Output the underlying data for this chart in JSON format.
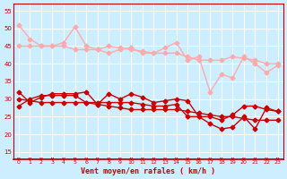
{
  "bg_color": "#cceeff",
  "grid_color": "#ffffff",
  "xlabel": "Vent moyen/en rafales ( km/h )",
  "xlabel_color": "#cc0000",
  "tick_color": "#cc0000",
  "x_ticks": [
    0,
    1,
    2,
    3,
    4,
    5,
    6,
    7,
    8,
    9,
    10,
    11,
    12,
    13,
    14,
    15,
    16,
    17,
    18,
    19,
    20,
    21,
    22,
    23
  ],
  "ylim": [
    13,
    57
  ],
  "yticks": [
    15,
    20,
    25,
    30,
    35,
    40,
    45,
    50,
    55
  ],
  "series_light": [
    [
      51,
      47,
      45,
      45,
      46,
      50.5,
      45,
      44,
      45,
      44.5,
      44,
      43.5,
      43,
      44.5,
      46,
      41,
      42,
      32,
      37,
      36,
      42,
      40,
      37.5,
      39.5
    ],
    [
      45,
      45,
      45,
      45,
      45,
      44,
      44,
      44,
      43,
      44,
      44.5,
      43,
      43,
      43,
      43,
      42,
      41,
      41,
      41,
      42,
      41.5,
      41,
      40,
      40
    ]
  ],
  "series_dark": [
    [
      32,
      29,
      30.5,
      31.5,
      31.5,
      31.5,
      32,
      28.5,
      31.5,
      30,
      31.5,
      30.5,
      29,
      29.5,
      30,
      29.5,
      25,
      23,
      21.5,
      22,
      25,
      21.5,
      27.5,
      26.5
    ],
    [
      28,
      30,
      31,
      31,
      31,
      31,
      29,
      29,
      29,
      29,
      29,
      28.5,
      28,
      28,
      28.5,
      25,
      25,
      25,
      24,
      25.5,
      28,
      28,
      27,
      26.5
    ],
    [
      30,
      29.5,
      29,
      29,
      29,
      29,
      29,
      28.5,
      28,
      27.5,
      27,
      27,
      27,
      27,
      27,
      26.5,
      26,
      25.5,
      25,
      25,
      24.5,
      24,
      24,
      24
    ]
  ],
  "color_light": "#ffaaaa",
  "color_dark": "#cc0000",
  "marker": "D",
  "marker_size": 2.5,
  "linewidth": 1.0
}
